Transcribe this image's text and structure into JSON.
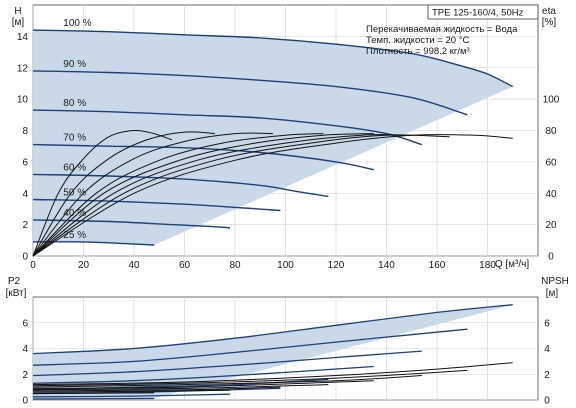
{
  "chart_data": [
    {
      "type": "line",
      "title": "TPE 125-160/4, 50Hz",
      "annotations": [
        "Перекачиваемая жидкость = Вода",
        "Темп. жидкости = 20 °C",
        "Плотность = 998.2 кг/м³"
      ],
      "xlabel": "Q [м³/ч]",
      "xlim": [
        0,
        200
      ],
      "x_ticks": [
        "0",
        "20",
        "40",
        "60",
        "80",
        "100",
        "120",
        "140",
        "160",
        "180"
      ],
      "y_left": {
        "label_top": "H",
        "label_unit": "[м]",
        "lim": [
          0,
          16
        ],
        "ticks": [
          "0",
          "2",
          "4",
          "6",
          "8",
          "10",
          "12",
          "14"
        ]
      },
      "y_right": {
        "label_top": "eta",
        "label_unit": "[%]",
        "lim": [
          0,
          160
        ],
        "ticks": [
          "0",
          "20",
          "40",
          "60",
          "80",
          "100"
        ]
      },
      "grid": true,
      "operating_area_color": "#c9d9e8",
      "curve_color": "#1f3f7a",
      "head_curves": [
        {
          "name": "100 %",
          "points": [
            [
              0,
              14.4
            ],
            [
              30,
              14.3
            ],
            [
              60,
              14.1
            ],
            [
              90,
              13.9
            ],
            [
              120,
              13.5
            ],
            [
              150,
              12.9
            ],
            [
              170,
              12.1
            ],
            [
              180,
              11.6
            ],
            [
              190,
              10.8
            ]
          ]
        },
        {
          "name": "90 %",
          "points": [
            [
              0,
              11.8
            ],
            [
              30,
              11.7
            ],
            [
              60,
              11.5
            ],
            [
              90,
              11.2
            ],
            [
              120,
              10.8
            ],
            [
              150,
              10.1
            ],
            [
              172,
              9.0
            ]
          ]
        },
        {
          "name": "80 %",
          "points": [
            [
              0,
              9.3
            ],
            [
              30,
              9.2
            ],
            [
              60,
              9.0
            ],
            [
              90,
              8.8
            ],
            [
              120,
              8.3
            ],
            [
              140,
              7.8
            ],
            [
              154,
              7.1
            ]
          ]
        },
        {
          "name": "70 %",
          "points": [
            [
              0,
              7.1
            ],
            [
              30,
              7.0
            ],
            [
              60,
              6.9
            ],
            [
              90,
              6.6
            ],
            [
              120,
              6.0
            ],
            [
              135,
              5.5
            ]
          ]
        },
        {
          "name": "60 %",
          "points": [
            [
              0,
              5.2
            ],
            [
              30,
              5.1
            ],
            [
              60,
              4.9
            ],
            [
              90,
              4.5
            ],
            [
              105,
              4.1
            ],
            [
              117,
              3.8
            ]
          ]
        },
        {
          "name": "50 %",
          "points": [
            [
              0,
              3.6
            ],
            [
              30,
              3.5
            ],
            [
              60,
              3.3
            ],
            [
              80,
              3.1
            ],
            [
              98,
              2.9
            ]
          ]
        },
        {
          "name": "40 %",
          "points": [
            [
              0,
              2.3
            ],
            [
              30,
              2.2
            ],
            [
              55,
              2.0
            ],
            [
              68,
              1.9
            ],
            [
              78,
              1.8
            ]
          ]
        },
        {
          "name": "25 %",
          "points": [
            [
              0,
              0.9
            ],
            [
              20,
              0.9
            ],
            [
              35,
              0.8
            ],
            [
              48,
              0.7
            ]
          ]
        }
      ],
      "efficiency_curves": [
        {
          "name": "25 %",
          "points": [
            [
              0,
              0
            ],
            [
              10,
              40
            ],
            [
              20,
              62
            ],
            [
              30,
              76
            ],
            [
              40,
              80
            ],
            [
              48,
              78
            ],
            [
              55,
              74
            ]
          ]
        },
        {
          "name": "40 %",
          "points": [
            [
              0,
              0
            ],
            [
              15,
              40
            ],
            [
              30,
              62
            ],
            [
              45,
              74
            ],
            [
              60,
              79
            ],
            [
              72,
              78
            ]
          ]
        },
        {
          "name": "50 %",
          "points": [
            [
              0,
              0
            ],
            [
              20,
              40
            ],
            [
              40,
              62
            ],
            [
              60,
              73
            ],
            [
              80,
              78
            ],
            [
              95,
              78
            ]
          ]
        },
        {
          "name": "60 %",
          "points": [
            [
              0,
              0
            ],
            [
              25,
              40
            ],
            [
              50,
              61
            ],
            [
              75,
              72
            ],
            [
              100,
              77
            ],
            [
              115,
              78
            ]
          ]
        },
        {
          "name": "70 %",
          "points": [
            [
              0,
              0
            ],
            [
              28,
              40
            ],
            [
              58,
              61
            ],
            [
              88,
              72
            ],
            [
              115,
              77
            ],
            [
              135,
              78
            ]
          ]
        },
        {
          "name": "80 %",
          "points": [
            [
              0,
              0
            ],
            [
              32,
              40
            ],
            [
              65,
              61
            ],
            [
              100,
              72
            ],
            [
              130,
              77
            ],
            [
              150,
              77
            ]
          ]
        },
        {
          "name": "90 %",
          "points": [
            [
              0,
              0
            ],
            [
              36,
              40
            ],
            [
              72,
              61
            ],
            [
              110,
              72
            ],
            [
              140,
              77
            ],
            [
              165,
              76
            ]
          ]
        },
        {
          "name": "100 %",
          "points": [
            [
              0,
              0
            ],
            [
              40,
              40
            ],
            [
              80,
              61
            ],
            [
              120,
              72
            ],
            [
              150,
              77
            ],
            [
              175,
              77
            ],
            [
              190,
              75
            ]
          ]
        }
      ]
    },
    {
      "type": "line",
      "xlim": [
        0,
        200
      ],
      "y_left": {
        "label_top": "P2",
        "label_unit": "[кВт]",
        "lim": [
          0,
          8
        ],
        "ticks": [
          "0",
          "2",
          "4",
          "6"
        ]
      },
      "y_right": {
        "label_top": "NPSH",
        "label_unit": "[м]",
        "lim": [
          0,
          8
        ],
        "ticks": [
          "0",
          "2",
          "4",
          "6"
        ]
      },
      "grid": true,
      "power_curves": [
        {
          "name": "100 %",
          "points": [
            [
              0,
              3.6
            ],
            [
              40,
              4.0
            ],
            [
              80,
              4.8
            ],
            [
              120,
              5.8
            ],
            [
              160,
              6.8
            ],
            [
              190,
              7.4
            ]
          ]
        },
        {
          "name": "90 %",
          "points": [
            [
              0,
              2.7
            ],
            [
              40,
              3.0
            ],
            [
              80,
              3.7
            ],
            [
              120,
              4.5
            ],
            [
              172,
              5.5
            ]
          ]
        },
        {
          "name": "80 %",
          "points": [
            [
              0,
              1.9
            ],
            [
              40,
              2.2
            ],
            [
              80,
              2.7
            ],
            [
              120,
              3.3
            ],
            [
              154,
              3.8
            ]
          ]
        },
        {
          "name": "70 %",
          "points": [
            [
              0,
              1.3
            ],
            [
              40,
              1.5
            ],
            [
              80,
              1.9
            ],
            [
              135,
              2.6
            ]
          ]
        },
        {
          "name": "60 %",
          "points": [
            [
              0,
              0.8
            ],
            [
              40,
              1.0
            ],
            [
              80,
              1.2
            ],
            [
              117,
              1.6
            ]
          ]
        },
        {
          "name": "50 %",
          "points": [
            [
              0,
              0.5
            ],
            [
              40,
              0.6
            ],
            [
              98,
              0.9
            ]
          ]
        },
        {
          "name": "40 %",
          "points": [
            [
              0,
              0.25
            ],
            [
              40,
              0.3
            ],
            [
              78,
              0.45
            ]
          ]
        },
        {
          "name": "25 %",
          "points": [
            [
              0,
              0.08
            ],
            [
              48,
              0.12
            ]
          ]
        }
      ],
      "npsh_curves": [
        {
          "name": "100 %",
          "points": [
            [
              0,
              1.2
            ],
            [
              60,
              1.4
            ],
            [
              120,
              1.9
            ],
            [
              160,
              2.4
            ],
            [
              190,
              2.9
            ]
          ]
        },
        {
          "name": "90 %",
          "points": [
            [
              0,
              1.1
            ],
            [
              60,
              1.3
            ],
            [
              120,
              1.7
            ],
            [
              172,
              2.3
            ]
          ]
        },
        {
          "name": "80 %",
          "points": [
            [
              0,
              1.0
            ],
            [
              60,
              1.2
            ],
            [
              120,
              1.5
            ],
            [
              154,
              1.9
            ]
          ]
        },
        {
          "name": "70 %",
          "points": [
            [
              0,
              0.9
            ],
            [
              60,
              1.0
            ],
            [
              135,
              1.5
            ]
          ]
        },
        {
          "name": "60 %",
          "points": [
            [
              0,
              0.8
            ],
            [
              60,
              0.9
            ],
            [
              117,
              1.2
            ]
          ]
        },
        {
          "name": "50 %",
          "points": [
            [
              0,
              0.7
            ],
            [
              60,
              0.8
            ],
            [
              98,
              1.0
            ]
          ]
        },
        {
          "name": "40 %",
          "points": [
            [
              0,
              0.6
            ],
            [
              78,
              0.75
            ]
          ]
        },
        {
          "name": "25 %",
          "points": [
            [
              0,
              0.5
            ],
            [
              48,
              0.55
            ]
          ]
        }
      ]
    }
  ]
}
